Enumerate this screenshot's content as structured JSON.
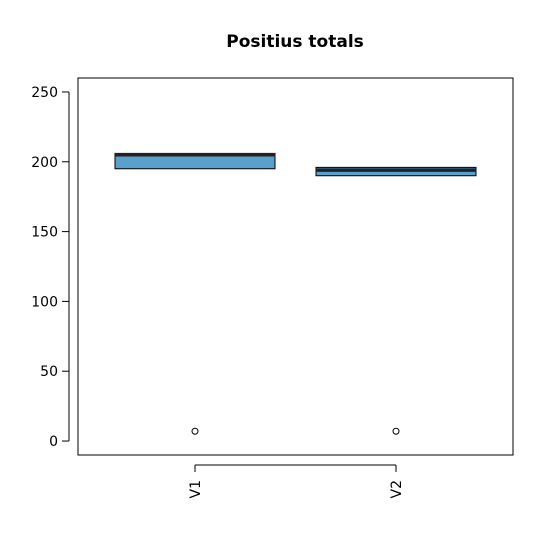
{
  "chart_data": {
    "type": "boxplot",
    "title": "Positius totals",
    "xlabel": "",
    "ylabel": "",
    "ylim": [
      -10,
      260
    ],
    "yticks": [
      0,
      50,
      100,
      150,
      200,
      250
    ],
    "ytick_labels": [
      "0",
      "50",
      "100",
      "150",
      "200",
      "250"
    ],
    "categories": [
      "V1",
      "V2"
    ],
    "fill_color": "#5AA0CC",
    "median_color": "#222222",
    "boxes": [
      {
        "name": "V1",
        "q1": 195,
        "median": 205,
        "q3": 206,
        "whisker_low": 195,
        "whisker_high": 206,
        "outliers": [
          7
        ]
      },
      {
        "name": "V2",
        "q1": 190,
        "median": 194,
        "q3": 196,
        "whisker_low": 190,
        "whisker_high": 196,
        "outliers": [
          7
        ]
      }
    ],
    "grid": false,
    "legend": "none"
  }
}
